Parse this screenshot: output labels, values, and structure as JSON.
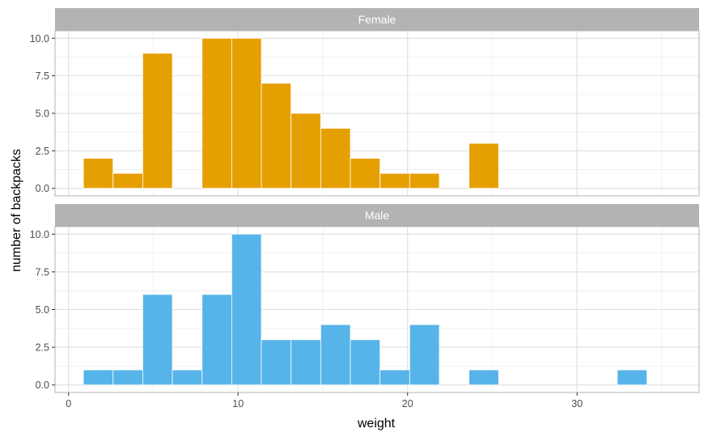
{
  "chart_data": {
    "type": "bar",
    "xlabel": "weight",
    "ylabel": "number of backpacks",
    "xlim": [
      -0.8,
      37.2
    ],
    "ylim": [
      -0.5,
      10.5
    ],
    "xticks": [
      {
        "value": 0,
        "label": "0"
      },
      {
        "value": 10,
        "label": "10"
      },
      {
        "value": 20,
        "label": "20"
      },
      {
        "value": 30,
        "label": "30"
      }
    ],
    "yticks": [
      {
        "value": 0,
        "label": "0.0"
      },
      {
        "value": 2.5,
        "label": "2.5"
      },
      {
        "value": 5,
        "label": "5.0"
      },
      {
        "value": 7.5,
        "label": "7.5"
      },
      {
        "value": 10,
        "label": "10.0"
      }
    ],
    "bin_width": 1.75,
    "bin_start": 0.875,
    "grid": true,
    "facets": [
      {
        "label": "Female",
        "color": "#E69F00",
        "counts": [
          2,
          1,
          9,
          0,
          10,
          10,
          7,
          5,
          4,
          2,
          1,
          1,
          0,
          3,
          0,
          0,
          0,
          0,
          0,
          0
        ]
      },
      {
        "label": "Male",
        "color": "#56B4E9",
        "counts": [
          1,
          1,
          6,
          1,
          6,
          10,
          3,
          3,
          4,
          3,
          1,
          4,
          0,
          1,
          0,
          0,
          0,
          0,
          1,
          0
        ]
      }
    ],
    "colors": {
      "strip_bg": "#B3B3B3",
      "strip_text": "#FFFFFF",
      "panel_border": "#B3B3B3",
      "grid_major": "#DEDEDE",
      "grid_minor": "#EFEFEF",
      "axis_text": "#4D4D4D",
      "title_text": "#000000",
      "bar_outline": "#FFFFFF"
    }
  }
}
